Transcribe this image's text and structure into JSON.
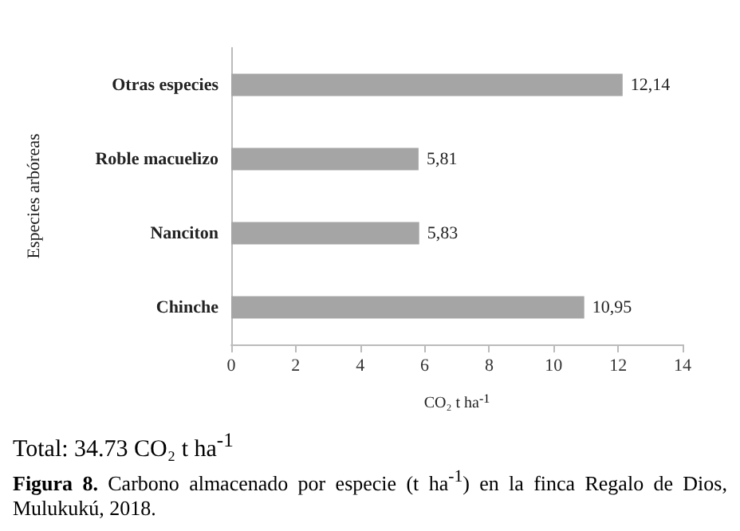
{
  "chart_data": {
    "type": "bar",
    "orientation": "horizontal",
    "categories": [
      "Otras especies",
      "Roble macuelizo",
      "Nanciton",
      "Chinche"
    ],
    "values": [
      12.14,
      5.81,
      5.83,
      10.95
    ],
    "value_labels": [
      "12,14",
      "5,81",
      "5,83",
      "10,95"
    ],
    "color": "#a5a5a5",
    "xlim": [
      0,
      14
    ],
    "xticks": [
      0,
      2,
      4,
      6,
      8,
      10,
      12,
      14
    ],
    "grid": false,
    "xlabel": "CO₂ t ha$^{-1}$",
    "ylabel": "Especies arbóreas",
    "annotations": [
      "Total: 34.73 CO₂ t ha$^{-1}$",
      "Figura 8. Carbono almacenado por especie (t ha$^{-1}$) en la finca Regalo de Dios, Mulukukú, 2018."
    ]
  }
}
